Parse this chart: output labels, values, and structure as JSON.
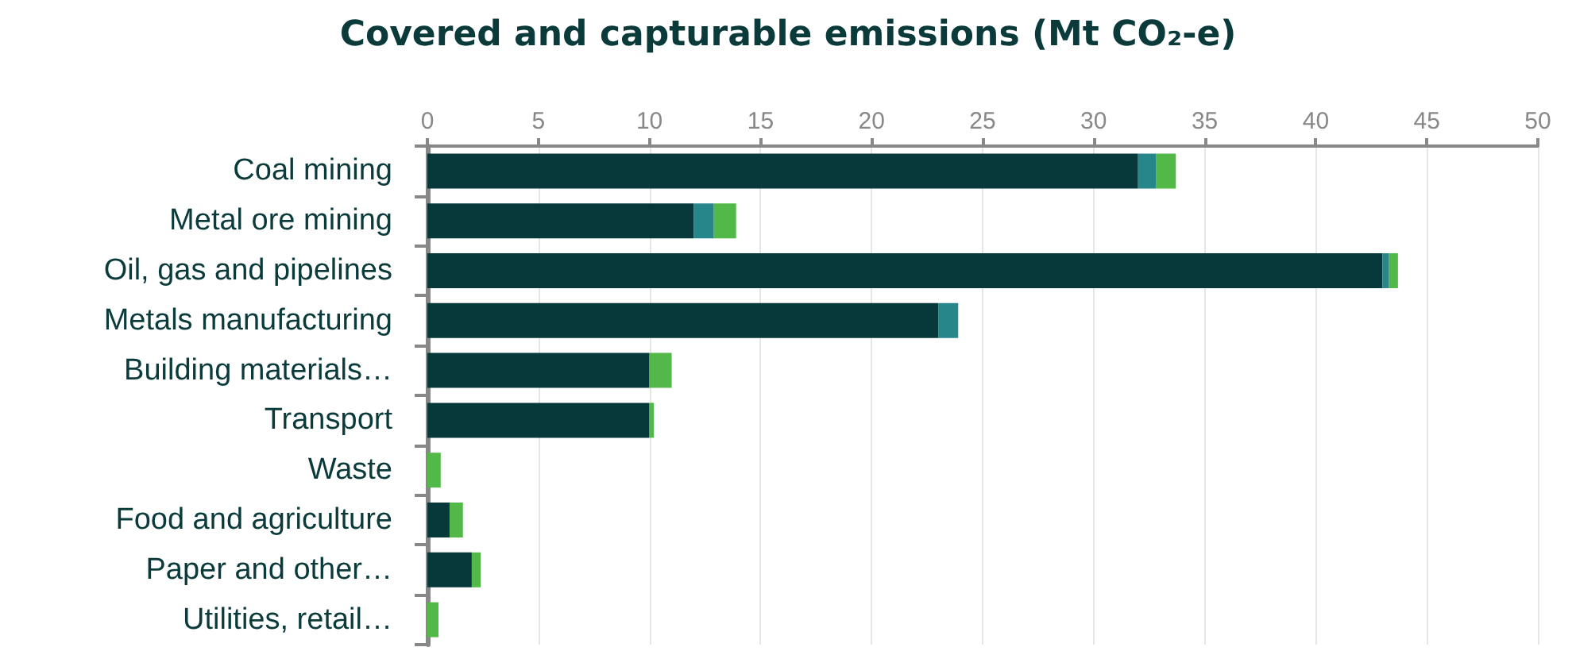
{
  "chart_data": {
    "type": "bar",
    "orientation": "horizontal",
    "stacked": true,
    "title": "Covered and capturable emissions (Mt CO₂-e)",
    "categories": [
      "Coal mining",
      "Metal ore mining",
      "Oil, gas and pipelines",
      "Metals manufacturing",
      "Building materials…",
      "Transport",
      "Waste",
      "Food and agriculture",
      "Paper and other…",
      "Utilities, retail…"
    ],
    "series": [
      {
        "color": "#07383a",
        "values": [
          32.0,
          12.0,
          43.0,
          23.0,
          10.0,
          10.0,
          0,
          1.0,
          2.0,
          0
        ]
      },
      {
        "color": "#26868a",
        "values": [
          0.8,
          0.9,
          0.3,
          0.9,
          0,
          0,
          0,
          0,
          0,
          0
        ]
      },
      {
        "color": "#52b848",
        "values": [
          0.9,
          1.0,
          0.4,
          0,
          1.0,
          0.2,
          0.6,
          0.6,
          0.4,
          0.5
        ]
      }
    ],
    "xlim": [
      0,
      50
    ],
    "xticks": [
      0,
      5,
      10,
      15,
      20,
      25,
      30,
      35,
      40,
      45,
      50
    ],
    "grid": "x"
  }
}
